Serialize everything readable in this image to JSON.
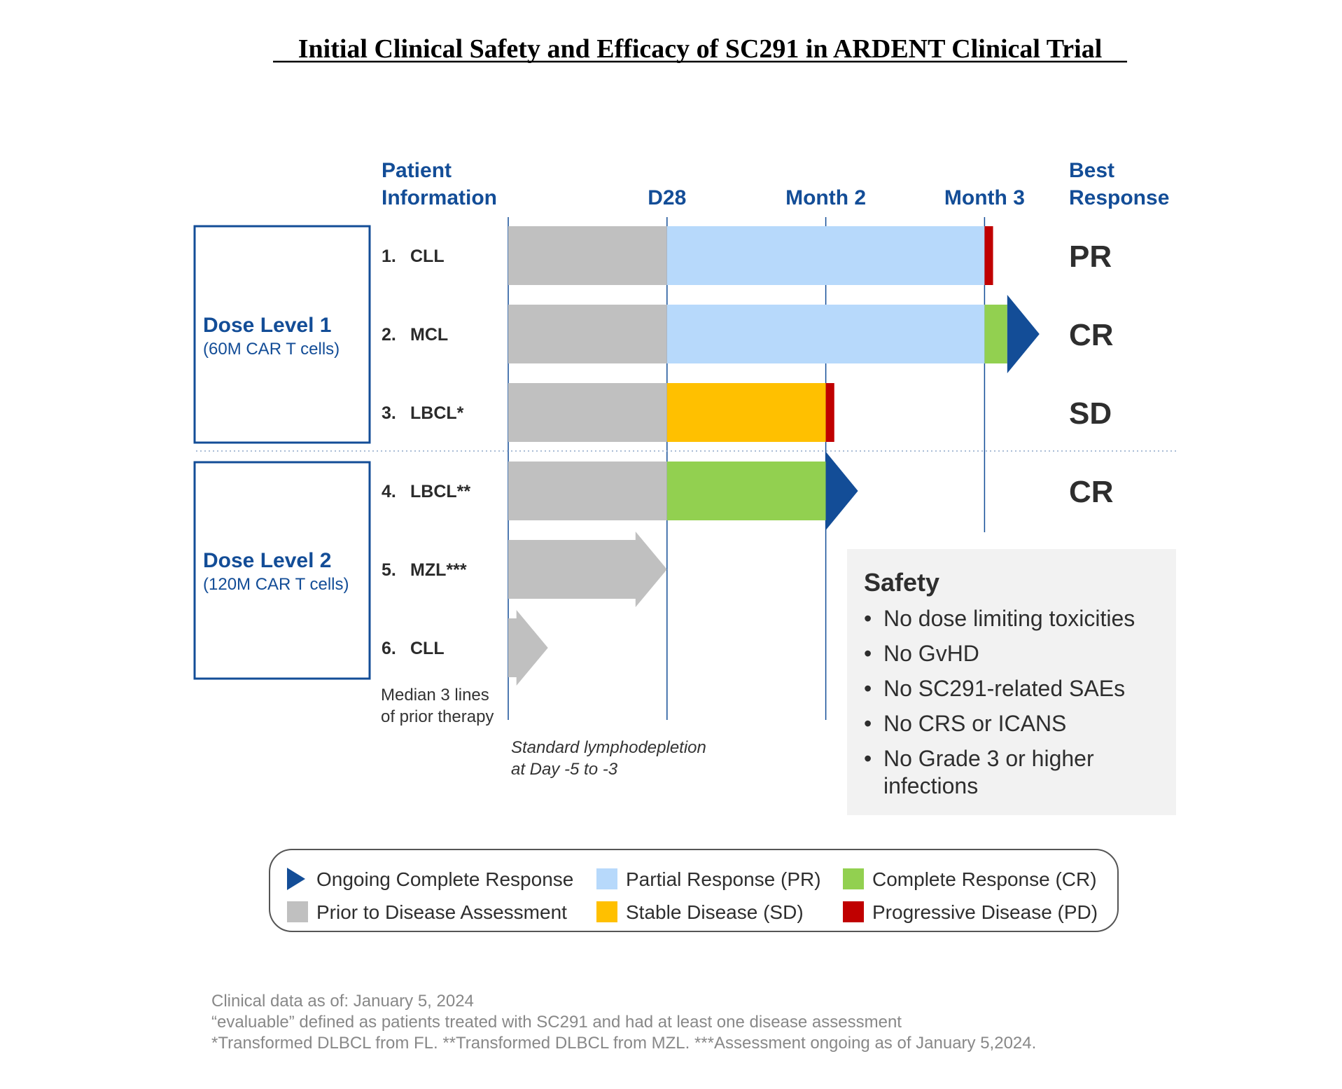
{
  "title": "Initial Clinical Safety and Efficacy of SC291 in ARDENT Clinical Trial",
  "headers": {
    "patient_info_line1": "Patient",
    "patient_info_line2": "Information",
    "best_response_line1": "Best",
    "best_response_line2": "Response"
  },
  "colors": {
    "prior": "#c0c0c0",
    "pr": "#b7d9fb",
    "cr": "#92d050",
    "sd": "#ffc000",
    "pd": "#c00000",
    "ongoing": "#134d97",
    "heading": "#134d97"
  },
  "dose_levels": [
    {
      "name": "Dose Level 1",
      "detail": "(60M CAR T cells)"
    },
    {
      "name": "Dose Level 2",
      "detail": "(120M CAR T cells)"
    }
  ],
  "median_note_line1": "Median 3 lines",
  "median_note_line2": "of prior therapy",
  "lymphodepletion_line1": "Standard lymphodepletion",
  "lymphodepletion_line2": "at Day -5 to -3",
  "chart_data": {
    "type": "swimmer",
    "x_unit": "days",
    "xlim": [
      0,
      100
    ],
    "timepoints": [
      {
        "label": "D28",
        "day": 28
      },
      {
        "label": "Month 2",
        "day": 56
      },
      {
        "label": "Month 3",
        "day": 84
      }
    ],
    "patients": [
      {
        "number": "1.",
        "label": "CLL",
        "best_response": "PR",
        "ongoing": false,
        "segments": [
          {
            "status": "Prior",
            "start": 0,
            "end": 28
          },
          {
            "status": "PR",
            "start": 28,
            "end": 84
          },
          {
            "status": "PD",
            "start": 84,
            "end": 85.5
          }
        ]
      },
      {
        "number": "2.",
        "label": "MCL",
        "best_response": "CR",
        "ongoing": true,
        "segments": [
          {
            "status": "Prior",
            "start": 0,
            "end": 28
          },
          {
            "status": "PR",
            "start": 28,
            "end": 84
          },
          {
            "status": "CR",
            "start": 84,
            "end": 88
          }
        ]
      },
      {
        "number": "3.",
        "label": "LBCL*",
        "best_response": "SD",
        "ongoing": false,
        "segments": [
          {
            "status": "Prior",
            "start": 0,
            "end": 28
          },
          {
            "status": "SD",
            "start": 28,
            "end": 56
          },
          {
            "status": "PD",
            "start": 56,
            "end": 57.5
          }
        ]
      },
      {
        "number": "4.",
        "label": "LBCL**",
        "best_response": "CR",
        "ongoing": true,
        "segments": [
          {
            "status": "Prior",
            "start": 0,
            "end": 28
          },
          {
            "status": "CR",
            "start": 28,
            "end": 56
          }
        ]
      },
      {
        "number": "5.",
        "label": "MZL***",
        "best_response": "",
        "ongoing": false,
        "segments": [
          {
            "status": "PriorArrow",
            "start": 0,
            "end": 28
          }
        ]
      },
      {
        "number": "6.",
        "label": "CLL",
        "best_response": "",
        "ongoing": false,
        "segments": [
          {
            "status": "PriorArrow",
            "start": 0,
            "end": 7
          }
        ]
      }
    ],
    "legend": [
      {
        "key": "ongoing",
        "label": "Ongoing Complete Response"
      },
      {
        "key": "pr",
        "label": "Partial Response (PR)"
      },
      {
        "key": "cr",
        "label": "Complete Response (CR)"
      },
      {
        "key": "prior",
        "label": "Prior to Disease Assessment"
      },
      {
        "key": "sd",
        "label": "Stable Disease (SD)"
      },
      {
        "key": "pd",
        "label": "Progressive Disease (PD)"
      }
    ]
  },
  "safety": {
    "title": "Safety",
    "items": [
      "No dose limiting toxicities",
      "No GvHD",
      "No SC291-related SAEs",
      "No CRS or ICANS",
      "No Grade 3 or higher",
      "infections"
    ]
  },
  "footnotes": [
    "Clinical data as of: January 5, 2024",
    "“evaluable” defined as patients treated with SC291 and had at least one disease assessment",
    "*Transformed DLBCL from FL. **Transformed DLBCL from MZL. ***Assessment ongoing as of January 5,2024."
  ]
}
